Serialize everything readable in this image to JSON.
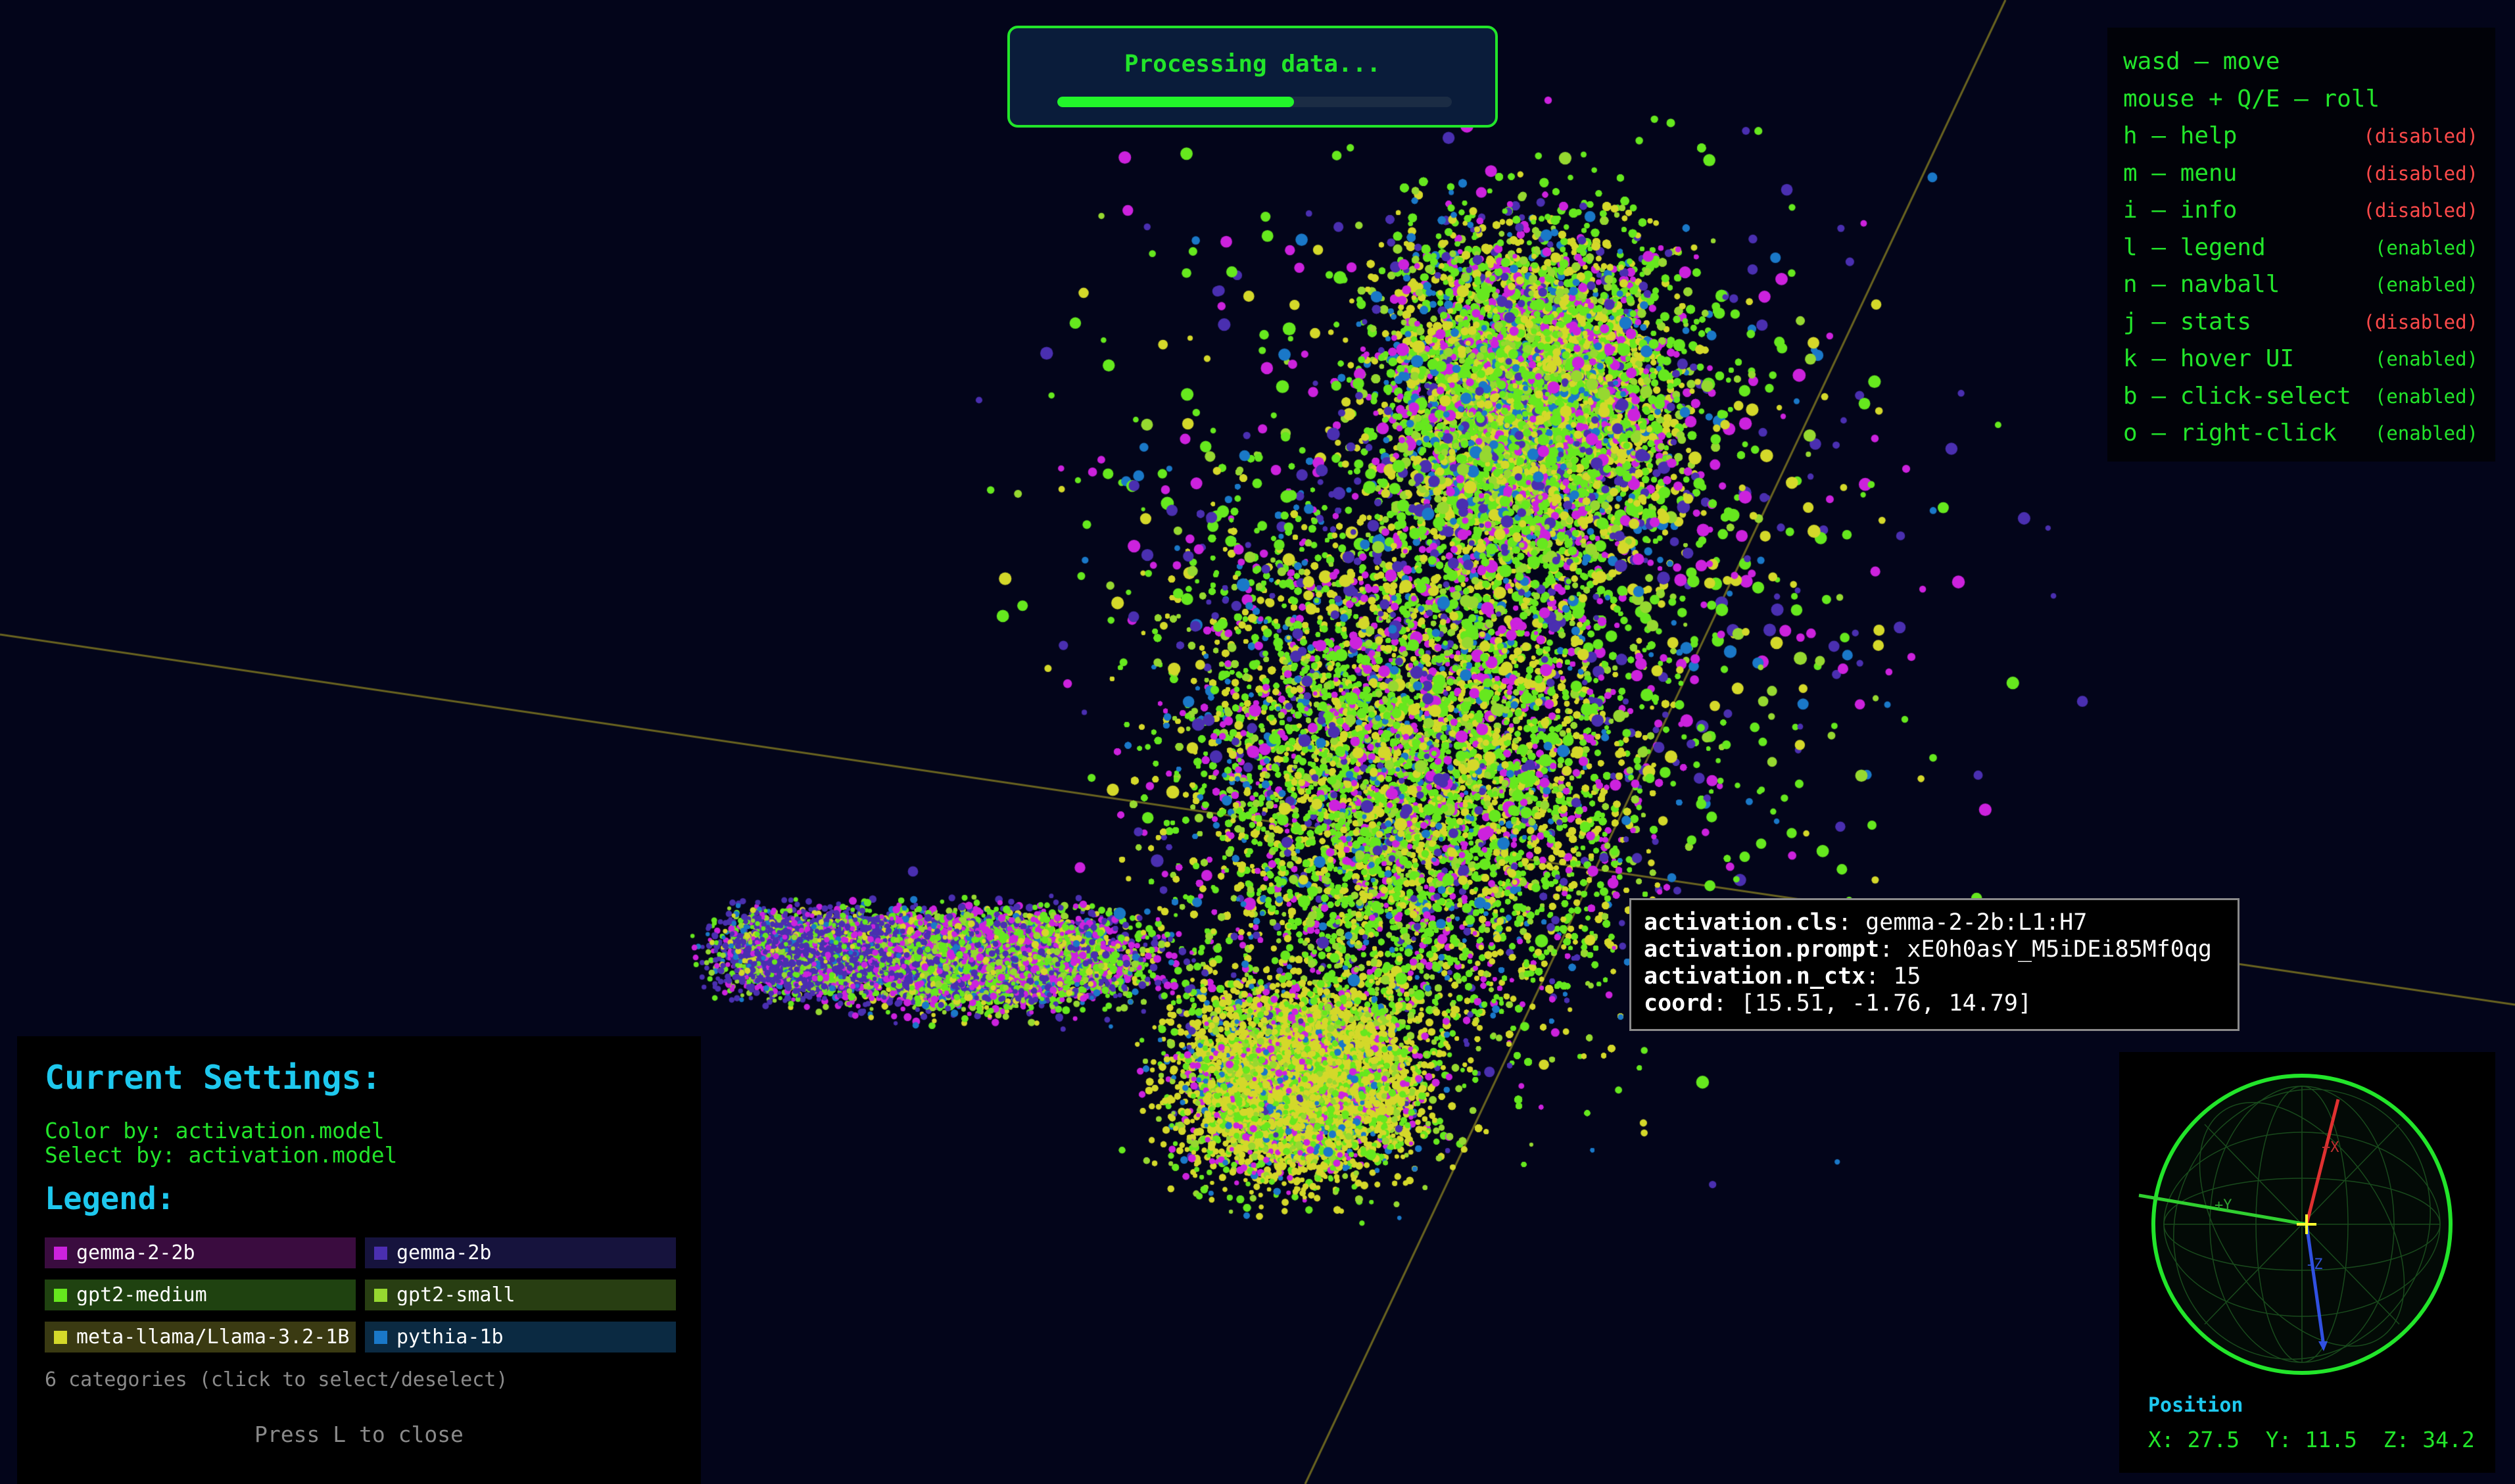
{
  "progress": {
    "text": "Processing data...",
    "fraction": 0.6
  },
  "key_help": [
    {
      "label": "wasd – move",
      "state": ""
    },
    {
      "label": "mouse + Q/E – roll",
      "state": ""
    },
    {
      "label": "h – help",
      "state": "(disabled)"
    },
    {
      "label": "m – menu",
      "state": "(disabled)"
    },
    {
      "label": "i – info",
      "state": "(disabled)"
    },
    {
      "label": "l – legend",
      "state": "(enabled)"
    },
    {
      "label": "n – navball",
      "state": "(enabled)"
    },
    {
      "label": "j – stats",
      "state": "(disabled)"
    },
    {
      "label": "k – hover UI",
      "state": "(enabled)"
    },
    {
      "label": "b – click-select",
      "state": "(enabled)"
    },
    {
      "label": "o – right-click",
      "state": "(enabled)"
    }
  ],
  "state_colors": {
    "enabled": "#22e52a",
    "disabled": "#ff4a4a"
  },
  "tooltip": {
    "rows": [
      {
        "key": "activation.cls",
        "value": "gemma-2-2b:L1:H7"
      },
      {
        "key": "activation.prompt",
        "value": "xE0h0asY_M5iDEi85Mf0qg"
      },
      {
        "key": "activation.n_ctx",
        "value": "15"
      },
      {
        "key": "coord",
        "value": "[15.51, -1.76, 14.79]"
      }
    ]
  },
  "settings": {
    "title": "Current Settings:",
    "color_by": "Color by: activation.model",
    "select_by": "Select by: activation.model",
    "legend_title": "Legend:",
    "legend": [
      {
        "label": "gemma-2-2b",
        "color": "#cc22dd",
        "bg": "#3a0c3f"
      },
      {
        "label": "gemma-2b",
        "color": "#4a2fb0",
        "bg": "#16133d"
      },
      {
        "label": "gpt2-medium",
        "color": "#66e81e",
        "bg": "#1f4210"
      },
      {
        "label": "gpt2-small",
        "color": "#96d830",
        "bg": "#283e12"
      },
      {
        "label": "meta-llama/Llama-3.2-1B",
        "color": "#d4d82a",
        "bg": "#3a3a12"
      },
      {
        "label": "pythia-1b",
        "color": "#1a78c8",
        "bg": "#0b2a42"
      }
    ],
    "count_text": "6 categories (click to select/deselect)",
    "close_text": "Press L to close"
  },
  "navball": {
    "position_title": "Position",
    "position": "X: 27.5  Y: 11.5  Z: 34.2",
    "axis_labels": [
      "+X",
      "+Y",
      "-Z"
    ]
  }
}
